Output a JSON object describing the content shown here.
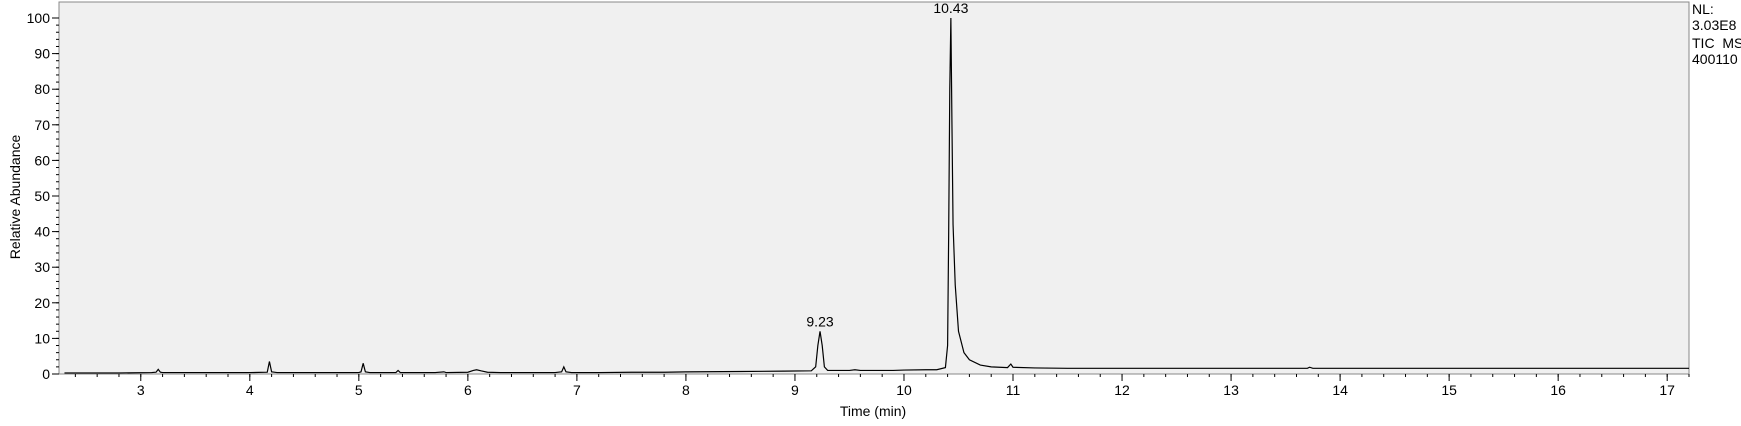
{
  "side_panel": {
    "nl_label": "NL:",
    "nl_value": "3.03E8",
    "scan_filter": "TIC  MS",
    "file_id": "400110"
  },
  "chart_data": {
    "type": "line",
    "title": "",
    "xlabel": "Time (min)",
    "ylabel": "Relative Abundance",
    "xlim": [
      2.25,
      17.2
    ],
    "ylim": [
      0,
      100
    ],
    "xticks_major": [
      3,
      4,
      5,
      6,
      7,
      8,
      9,
      10,
      11,
      12,
      13,
      14,
      15,
      16,
      17
    ],
    "yticks_major": [
      0,
      10,
      20,
      30,
      40,
      50,
      60,
      70,
      80,
      90,
      100
    ],
    "minor_x_step": 0.2,
    "minor_y_step": 2,
    "grid": false,
    "line_color": "#000000",
    "plot_background": "#f0f0f0",
    "peak_labels": [
      {
        "text": "9.23",
        "x": 9.23,
        "y": 12.0
      },
      {
        "text": "10.43",
        "x": 10.43,
        "y": 100
      }
    ],
    "series": [
      {
        "points": [
          [
            2.3,
            0.3
          ],
          [
            2.5,
            0.3
          ],
          [
            2.8,
            0.3
          ],
          [
            3.1,
            0.4
          ],
          [
            3.14,
            0.5
          ],
          [
            3.16,
            1.3
          ],
          [
            3.18,
            0.5
          ],
          [
            3.2,
            0.4
          ],
          [
            3.5,
            0.4
          ],
          [
            4.0,
            0.4
          ],
          [
            4.16,
            0.5
          ],
          [
            4.18,
            3.5
          ],
          [
            4.2,
            0.6
          ],
          [
            4.25,
            0.4
          ],
          [
            4.6,
            0.4
          ],
          [
            5.0,
            0.4
          ],
          [
            5.02,
            0.6
          ],
          [
            5.04,
            3.0
          ],
          [
            5.06,
            0.6
          ],
          [
            5.1,
            0.4
          ],
          [
            5.34,
            0.4
          ],
          [
            5.36,
            1.0
          ],
          [
            5.38,
            0.4
          ],
          [
            5.7,
            0.4
          ],
          [
            5.78,
            0.6
          ],
          [
            5.8,
            0.4
          ],
          [
            6.0,
            0.5
          ],
          [
            6.05,
            1.0
          ],
          [
            6.08,
            1.2
          ],
          [
            6.12,
            0.9
          ],
          [
            6.18,
            0.5
          ],
          [
            6.3,
            0.4
          ],
          [
            6.8,
            0.4
          ],
          [
            6.86,
            0.6
          ],
          [
            6.88,
            2.0
          ],
          [
            6.9,
            0.6
          ],
          [
            6.95,
            0.4
          ],
          [
            7.2,
            0.4
          ],
          [
            7.5,
            0.5
          ],
          [
            7.8,
            0.5
          ],
          [
            8.0,
            0.6
          ],
          [
            8.5,
            0.7
          ],
          [
            8.9,
            0.8
          ],
          [
            9.15,
            0.9
          ],
          [
            9.19,
            2.0
          ],
          [
            9.21,
            8.0
          ],
          [
            9.23,
            12.0
          ],
          [
            9.25,
            8.0
          ],
          [
            9.27,
            2.0
          ],
          [
            9.3,
            1.0
          ],
          [
            9.5,
            1.0
          ],
          [
            9.55,
            1.2
          ],
          [
            9.6,
            1.0
          ],
          [
            9.9,
            1.0
          ],
          [
            10.0,
            1.1
          ],
          [
            10.2,
            1.2
          ],
          [
            10.3,
            1.2
          ],
          [
            10.38,
            1.8
          ],
          [
            10.4,
            8.0
          ],
          [
            10.41,
            40.0
          ],
          [
            10.42,
            80.0
          ],
          [
            10.43,
            100.0
          ],
          [
            10.44,
            70.0
          ],
          [
            10.45,
            42.0
          ],
          [
            10.47,
            25.0
          ],
          [
            10.5,
            12.0
          ],
          [
            10.55,
            6.0
          ],
          [
            10.6,
            4.0
          ],
          [
            10.7,
            2.5
          ],
          [
            10.8,
            2.0
          ],
          [
            10.95,
            1.8
          ],
          [
            10.98,
            2.8
          ],
          [
            11.0,
            1.9
          ],
          [
            11.2,
            1.7
          ],
          [
            11.5,
            1.6
          ],
          [
            12.0,
            1.6
          ],
          [
            12.5,
            1.6
          ],
          [
            13.0,
            1.6
          ],
          [
            13.7,
            1.6
          ],
          [
            13.72,
            1.9
          ],
          [
            13.75,
            1.6
          ],
          [
            14.5,
            1.6
          ],
          [
            15.0,
            1.6
          ],
          [
            16.0,
            1.6
          ],
          [
            17.2,
            1.6
          ]
        ]
      }
    ]
  }
}
